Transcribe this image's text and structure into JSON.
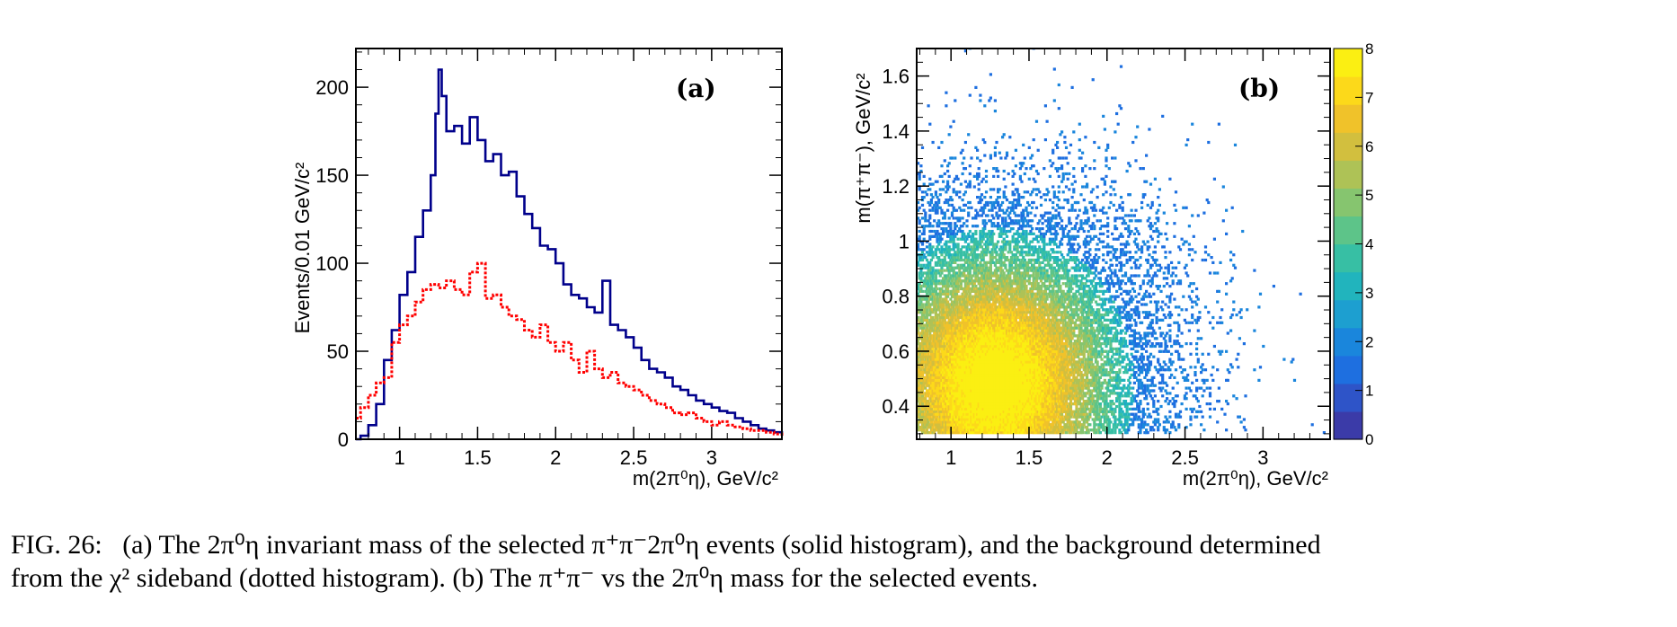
{
  "figure": {
    "caption": {
      "lead": "FIG. 26:",
      "text_a": "(a) The 2π⁰η invariant mass of the selected π⁺π⁻2π⁰η events (solid histogram), and the background determined",
      "text_b": "from the χ² sideband (dotted histogram). (b) The π⁺π⁻ vs the 2π⁰η mass for the selected events."
    }
  },
  "chart_data": [
    {
      "type": "line",
      "panel_label": "(a)",
      "xlabel": "m(2π⁰η), GeV/c²",
      "ylabel": "Events/0.01 GeV/c²",
      "xlim": [
        0.72,
        3.45
      ],
      "ylim": [
        0,
        222
      ],
      "x_ticks": [
        "1",
        "1.5",
        "2",
        "2.5",
        "3"
      ],
      "y_ticks": [
        "0",
        "50",
        "100",
        "150",
        "200"
      ],
      "series": [
        {
          "style": "solid",
          "color": "#00008b",
          "x": [
            0.72,
            0.75,
            0.8,
            0.85,
            0.9,
            0.95,
            1.0,
            1.05,
            1.1,
            1.15,
            1.2,
            1.23,
            1.25,
            1.27,
            1.3,
            1.35,
            1.4,
            1.45,
            1.5,
            1.55,
            1.6,
            1.65,
            1.7,
            1.75,
            1.8,
            1.85,
            1.9,
            1.95,
            2.0,
            2.05,
            2.1,
            2.15,
            2.2,
            2.25,
            2.3,
            2.35,
            2.4,
            2.45,
            2.5,
            2.55,
            2.6,
            2.65,
            2.7,
            2.75,
            2.8,
            2.85,
            2.9,
            2.95,
            3.0,
            3.05,
            3.1,
            3.15,
            3.2,
            3.25,
            3.3,
            3.35,
            3.4,
            3.45
          ],
          "values": [
            0,
            2,
            8,
            20,
            45,
            62,
            82,
            95,
            115,
            130,
            150,
            185,
            210,
            195,
            175,
            178,
            168,
            183,
            170,
            158,
            162,
            150,
            152,
            138,
            128,
            120,
            110,
            108,
            100,
            88,
            82,
            80,
            75,
            72,
            90,
            65,
            62,
            58,
            52,
            45,
            40,
            38,
            35,
            30,
            28,
            25,
            22,
            20,
            18,
            16,
            15,
            12,
            10,
            8,
            6,
            5,
            4,
            2
          ]
        },
        {
          "style": "dotted",
          "color": "#ff0000",
          "x": [
            0.72,
            0.75,
            0.8,
            0.85,
            0.9,
            0.95,
            1.0,
            1.05,
            1.1,
            1.15,
            1.2,
            1.25,
            1.3,
            1.35,
            1.4,
            1.45,
            1.5,
            1.55,
            1.6,
            1.65,
            1.7,
            1.75,
            1.8,
            1.85,
            1.9,
            1.95,
            2.0,
            2.05,
            2.1,
            2.15,
            2.2,
            2.25,
            2.3,
            2.35,
            2.4,
            2.45,
            2.5,
            2.55,
            2.6,
            2.65,
            2.7,
            2.75,
            2.8,
            2.85,
            2.9,
            2.95,
            3.0,
            3.05,
            3.1,
            3.15,
            3.2,
            3.25,
            3.3,
            3.35,
            3.4,
            3.45
          ],
          "values": [
            12,
            18,
            25,
            32,
            35,
            55,
            65,
            70,
            78,
            85,
            88,
            86,
            90,
            85,
            82,
            95,
            100,
            80,
            82,
            75,
            70,
            68,
            62,
            58,
            65,
            55,
            50,
            55,
            45,
            38,
            50,
            40,
            35,
            38,
            32,
            30,
            28,
            25,
            22,
            20,
            18,
            15,
            14,
            15,
            12,
            10,
            8,
            10,
            8,
            7,
            6,
            5,
            5,
            4,
            3,
            2
          ]
        }
      ]
    },
    {
      "type": "heatmap",
      "panel_label": "(b)",
      "xlabel": "m(2π⁰η), GeV/c²",
      "ylabel": "m(π⁺π⁻), GeV/c²",
      "xlim": [
        0.78,
        3.43
      ],
      "ylim": [
        0.28,
        1.7
      ],
      "x_ticks": [
        "1",
        "1.5",
        "2",
        "2.5",
        "3"
      ],
      "y_ticks": [
        "0.4",
        "0.6",
        "0.8",
        "1",
        "1.2",
        "1.4",
        "1.6"
      ],
      "colorbar": {
        "range": [
          0,
          8
        ],
        "ticks": [
          "0",
          "1",
          "2",
          "3",
          "4",
          "5",
          "6",
          "7",
          "8"
        ],
        "colors": [
          "#3b3ba8",
          "#2e54c8",
          "#1e6fe0",
          "#1a86dc",
          "#1d9fd0",
          "#21b4bd",
          "#37bfa4",
          "#5dc489",
          "#86c56f",
          "#aec256",
          "#d2bf3e",
          "#f0c22a",
          "#fcd91a",
          "#fbef12"
        ]
      }
    }
  ]
}
